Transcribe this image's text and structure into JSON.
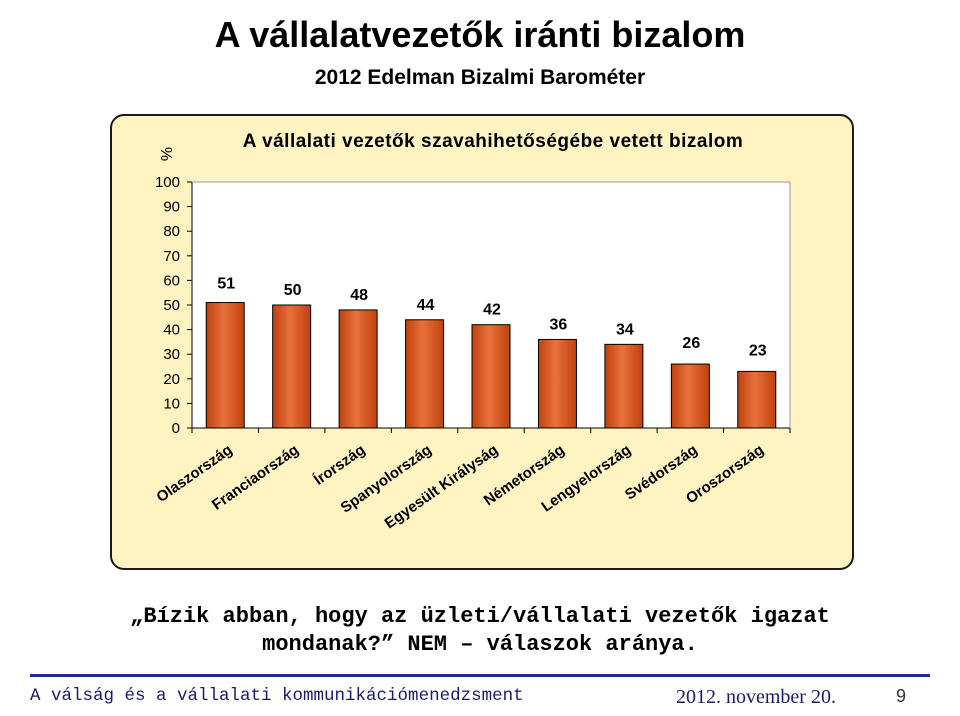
{
  "slide": {
    "title": "A vállalatvezetők iránti bizalom",
    "subtitle": "2012 Edelman Bizalmi Barométer",
    "question_line1": "„Bízik abban, hogy az üzleti/vállalati vezetők igazat",
    "question_line2": "mondanak?” NEM – válaszok aránya.",
    "footer_left": "A válság és a vállalati kommunikációmenedzsment",
    "footer_date": "2012. november 20.",
    "page_number": "9"
  },
  "colors": {
    "bar": "#c0410f",
    "bar_highlight": "#e8713a",
    "chart_background": "#fff3c2",
    "footer_line": "#1f2b8f"
  },
  "chart_data": {
    "type": "bar",
    "title": "A vállalati vezetők szavahihetőségébe vetett bizalom",
    "ylabel": "%",
    "xlabel": "",
    "ylim": [
      0,
      100
    ],
    "yticks": [
      0,
      10,
      20,
      30,
      40,
      50,
      60,
      70,
      80,
      90,
      100
    ],
    "grid": false,
    "categories": [
      "Olaszország",
      "Franciaország",
      "Írország",
      "Spanyolország",
      "Egyesült Királyság",
      "Németország",
      "Lengyelország",
      "Svédország",
      "Oroszország"
    ],
    "values": [
      51,
      50,
      48,
      44,
      42,
      36,
      34,
      26,
      23
    ],
    "data_labels": [
      "51",
      "50",
      "48",
      "44",
      "42",
      "36",
      "34",
      "26",
      "23"
    ]
  }
}
